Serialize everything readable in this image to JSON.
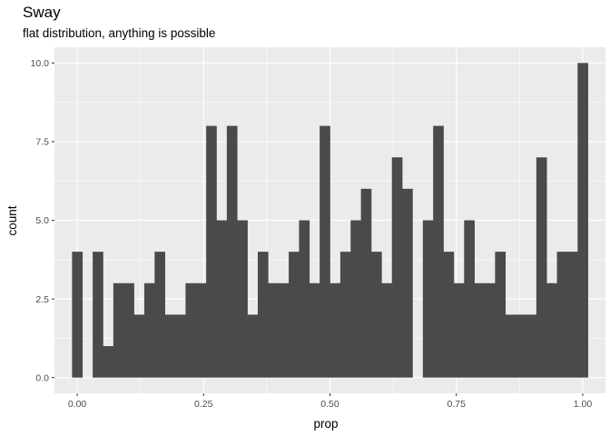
{
  "chart_data": {
    "type": "histogram",
    "title": "Sway",
    "subtitle": "flat distribution, anything is possible",
    "xlabel": "prop",
    "ylabel": "count",
    "xlim": [
      -0.045,
      1.045
    ],
    "ylim": [
      -0.5,
      10.5
    ],
    "x_ticks": [
      0.0,
      0.25,
      0.5,
      0.75,
      1.0
    ],
    "x_tick_labels": [
      "0.00",
      "0.25",
      "0.50",
      "0.75",
      "1.00"
    ],
    "y_ticks": [
      0.0,
      2.5,
      5.0,
      7.5,
      10.0
    ],
    "y_tick_labels": [
      "0.0",
      "2.5",
      "5.0",
      "7.5",
      "10.0"
    ],
    "bins": 50,
    "bin_width": 0.02041,
    "bin_start": -0.0102,
    "counts": [
      4,
      0,
      4,
      1,
      3,
      3,
      2,
      3,
      4,
      2,
      2,
      3,
      3,
      8,
      5,
      8,
      5,
      2,
      4,
      3,
      3,
      4,
      5,
      3,
      8,
      3,
      4,
      5,
      6,
      4,
      3,
      7,
      6,
      0,
      5,
      8,
      4,
      3,
      5,
      3,
      3,
      4,
      2,
      2,
      2,
      7,
      3,
      4,
      4,
      10
    ],
    "bar_color": "#4a4a4a",
    "panel_background": "#ebebeb",
    "grid": true,
    "legend": "none"
  }
}
